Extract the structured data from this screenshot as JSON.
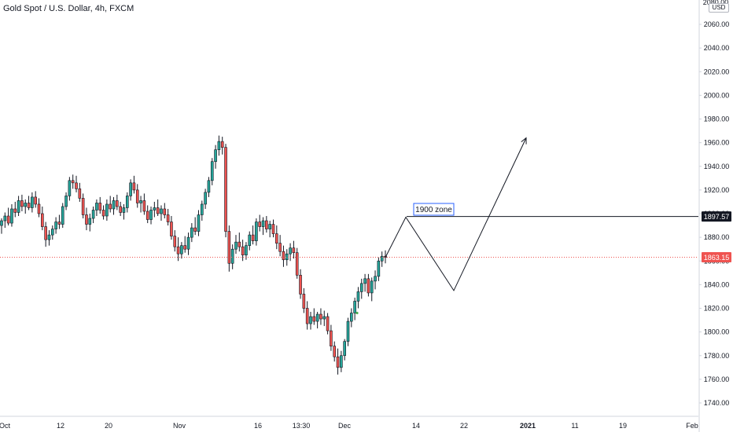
{
  "header": {
    "title": "Gold Spot / U.S. Dollar, 4h, FXCM",
    "currency": "USD",
    "top_clipped_label": "2080.00"
  },
  "colors": {
    "up": "#26a69a",
    "down": "#ef5350",
    "wick": "#131722",
    "drawing": "#131722",
    "current_price_line": "#ef5350",
    "current_price_badge": "#ef5350",
    "level_badge": "#131722",
    "annotation_border": "#2962ff",
    "axis_line": "#d1d4dc"
  },
  "chart_data": {
    "type": "candlestick",
    "title": "Gold Spot / U.S. Dollar, 4h, FXCM",
    "y_unit": "USD",
    "ylim": [
      1730,
      2080
    ],
    "y_ticks": [
      2060,
      2040,
      2020,
      2000,
      1980,
      1960,
      1940,
      1920,
      1900,
      1880,
      1860,
      1840,
      1820,
      1800,
      1780,
      1760,
      1740
    ],
    "y_tick_labels": [
      "2060.00",
      "2040.00",
      "2020.00",
      "2000.00",
      "1980.00",
      "1960.00",
      "1940.00",
      "1920.00",
      "1900.00",
      "1880.00",
      "1860.00",
      "1840.00",
      "1820.00",
      "1800.00",
      "1780.00",
      "1760.00",
      "1740.00"
    ],
    "x_tick_labels": [
      "Oct",
      "12",
      "20",
      "Nov",
      "16",
      "13:30",
      "Dec",
      "14",
      "22",
      "2021",
      "11",
      "19",
      "Feb"
    ],
    "grid": false,
    "current_price": 1863.15,
    "current_price_label": "1863.15",
    "horizontal_level": 1897.57,
    "horizontal_level_label": "1897.57",
    "annotation": "1900 zone",
    "projection_path": [
      1863,
      1897,
      1835,
      1964
    ],
    "price_path": [
      1895,
      1908,
      1915,
      1903,
      1888,
      1872,
      1888,
      1902,
      1920,
      1930,
      1912,
      1895,
      1883,
      1900,
      1905,
      1912,
      1902,
      1896,
      1908,
      1928,
      1918,
      1903,
      1910,
      1898,
      1892,
      1905,
      1903,
      1890,
      1875,
      1862,
      1868,
      1875,
      1892,
      1905,
      1920,
      1945,
      1962,
      1955,
      1870,
      1855,
      1868,
      1880,
      1895,
      1885,
      1880,
      1890,
      1898,
      1892,
      1880,
      1868,
      1860,
      1868,
      1870,
      1860,
      1848,
      1830,
      1813,
      1806,
      1812,
      1816,
      1808,
      1800,
      1790,
      1776,
      1768,
      1782,
      1795,
      1815,
      1830,
      1843,
      1848,
      1835,
      1846,
      1860,
      1866,
      1863
    ],
    "candles": [
      {
        "o": 1890,
        "h": 1896,
        "l": 1883,
        "c": 1894
      },
      {
        "o": 1894,
        "h": 1901,
        "l": 1888,
        "c": 1898
      },
      {
        "o": 1898,
        "h": 1905,
        "l": 1890,
        "c": 1892
      },
      {
        "o": 1892,
        "h": 1908,
        "l": 1889,
        "c": 1904
      },
      {
        "o": 1904,
        "h": 1910,
        "l": 1897,
        "c": 1901
      },
      {
        "o": 1901,
        "h": 1915,
        "l": 1898,
        "c": 1911
      },
      {
        "o": 1911,
        "h": 1916,
        "l": 1902,
        "c": 1906
      },
      {
        "o": 1906,
        "h": 1912,
        "l": 1900,
        "c": 1909
      },
      {
        "o": 1909,
        "h": 1915,
        "l": 1903,
        "c": 1905
      },
      {
        "o": 1905,
        "h": 1918,
        "l": 1901,
        "c": 1914
      },
      {
        "o": 1914,
        "h": 1919,
        "l": 1905,
        "c": 1908
      },
      {
        "o": 1908,
        "h": 1913,
        "l": 1897,
        "c": 1900
      },
      {
        "o": 1900,
        "h": 1906,
        "l": 1886,
        "c": 1889
      },
      {
        "o": 1889,
        "h": 1893,
        "l": 1872,
        "c": 1878
      },
      {
        "o": 1878,
        "h": 1886,
        "l": 1873,
        "c": 1882
      },
      {
        "o": 1882,
        "h": 1890,
        "l": 1878,
        "c": 1887
      },
      {
        "o": 1887,
        "h": 1897,
        "l": 1883,
        "c": 1893
      },
      {
        "o": 1893,
        "h": 1899,
        "l": 1887,
        "c": 1891
      },
      {
        "o": 1891,
        "h": 1909,
        "l": 1888,
        "c": 1906
      },
      {
        "o": 1906,
        "h": 1918,
        "l": 1903,
        "c": 1915
      },
      {
        "o": 1915,
        "h": 1931,
        "l": 1911,
        "c": 1928
      },
      {
        "o": 1928,
        "h": 1933,
        "l": 1921,
        "c": 1926
      },
      {
        "o": 1926,
        "h": 1932,
        "l": 1918,
        "c": 1921
      },
      {
        "o": 1921,
        "h": 1926,
        "l": 1910,
        "c": 1913
      },
      {
        "o": 1913,
        "h": 1917,
        "l": 1896,
        "c": 1899
      },
      {
        "o": 1899,
        "h": 1905,
        "l": 1886,
        "c": 1891
      },
      {
        "o": 1891,
        "h": 1900,
        "l": 1885,
        "c": 1896
      },
      {
        "o": 1896,
        "h": 1906,
        "l": 1892,
        "c": 1903
      },
      {
        "o": 1903,
        "h": 1912,
        "l": 1898,
        "c": 1909
      },
      {
        "o": 1909,
        "h": 1914,
        "l": 1900,
        "c": 1903
      },
      {
        "o": 1903,
        "h": 1907,
        "l": 1895,
        "c": 1898
      },
      {
        "o": 1898,
        "h": 1912,
        "l": 1894,
        "c": 1908
      },
      {
        "o": 1908,
        "h": 1915,
        "l": 1901,
        "c": 1904
      },
      {
        "o": 1904,
        "h": 1914,
        "l": 1899,
        "c": 1911
      },
      {
        "o": 1911,
        "h": 1916,
        "l": 1903,
        "c": 1906
      },
      {
        "o": 1906,
        "h": 1910,
        "l": 1898,
        "c": 1901
      },
      {
        "o": 1901,
        "h": 1908,
        "l": 1895,
        "c": 1905
      },
      {
        "o": 1905,
        "h": 1918,
        "l": 1901,
        "c": 1915
      },
      {
        "o": 1915,
        "h": 1929,
        "l": 1911,
        "c": 1926
      },
      {
        "o": 1926,
        "h": 1932,
        "l": 1917,
        "c": 1920
      },
      {
        "o": 1920,
        "h": 1925,
        "l": 1905,
        "c": 1909
      },
      {
        "o": 1909,
        "h": 1915,
        "l": 1901,
        "c": 1911
      },
      {
        "o": 1911,
        "h": 1917,
        "l": 1899,
        "c": 1902
      },
      {
        "o": 1902,
        "h": 1907,
        "l": 1892,
        "c": 1895
      },
      {
        "o": 1895,
        "h": 1906,
        "l": 1891,
        "c": 1903
      },
      {
        "o": 1903,
        "h": 1910,
        "l": 1897,
        "c": 1905
      },
      {
        "o": 1905,
        "h": 1912,
        "l": 1898,
        "c": 1900
      },
      {
        "o": 1900,
        "h": 1907,
        "l": 1894,
        "c": 1904
      },
      {
        "o": 1904,
        "h": 1909,
        "l": 1896,
        "c": 1899
      },
      {
        "o": 1899,
        "h": 1904,
        "l": 1890,
        "c": 1893
      },
      {
        "o": 1893,
        "h": 1898,
        "l": 1878,
        "c": 1881
      },
      {
        "o": 1881,
        "h": 1886,
        "l": 1868,
        "c": 1872
      },
      {
        "o": 1872,
        "h": 1880,
        "l": 1860,
        "c": 1866
      },
      {
        "o": 1866,
        "h": 1876,
        "l": 1862,
        "c": 1873
      },
      {
        "o": 1873,
        "h": 1881,
        "l": 1867,
        "c": 1870
      },
      {
        "o": 1870,
        "h": 1884,
        "l": 1865,
        "c": 1880
      },
      {
        "o": 1880,
        "h": 1892,
        "l": 1876,
        "c": 1888
      },
      {
        "o": 1888,
        "h": 1897,
        "l": 1882,
        "c": 1885
      },
      {
        "o": 1885,
        "h": 1903,
        "l": 1881,
        "c": 1899
      },
      {
        "o": 1899,
        "h": 1911,
        "l": 1894,
        "c": 1908
      },
      {
        "o": 1908,
        "h": 1921,
        "l": 1904,
        "c": 1918
      },
      {
        "o": 1918,
        "h": 1931,
        "l": 1914,
        "c": 1928
      },
      {
        "o": 1928,
        "h": 1947,
        "l": 1924,
        "c": 1944
      },
      {
        "o": 1944,
        "h": 1958,
        "l": 1938,
        "c": 1954
      },
      {
        "o": 1954,
        "h": 1966,
        "l": 1949,
        "c": 1961
      },
      {
        "o": 1961,
        "h": 1965,
        "l": 1950,
        "c": 1956
      },
      {
        "o": 1956,
        "h": 1959,
        "l": 1880,
        "c": 1885
      },
      {
        "o": 1885,
        "h": 1890,
        "l": 1851,
        "c": 1858
      },
      {
        "o": 1858,
        "h": 1874,
        "l": 1853,
        "c": 1870
      },
      {
        "o": 1870,
        "h": 1882,
        "l": 1866,
        "c": 1876
      },
      {
        "o": 1876,
        "h": 1884,
        "l": 1868,
        "c": 1872
      },
      {
        "o": 1872,
        "h": 1878,
        "l": 1860,
        "c": 1865
      },
      {
        "o": 1865,
        "h": 1876,
        "l": 1861,
        "c": 1873
      },
      {
        "o": 1873,
        "h": 1885,
        "l": 1869,
        "c": 1882
      },
      {
        "o": 1882,
        "h": 1890,
        "l": 1874,
        "c": 1877
      },
      {
        "o": 1877,
        "h": 1896,
        "l": 1873,
        "c": 1893
      },
      {
        "o": 1893,
        "h": 1899,
        "l": 1885,
        "c": 1889
      },
      {
        "o": 1889,
        "h": 1897,
        "l": 1882,
        "c": 1894
      },
      {
        "o": 1894,
        "h": 1898,
        "l": 1884,
        "c": 1887
      },
      {
        "o": 1887,
        "h": 1894,
        "l": 1880,
        "c": 1891
      },
      {
        "o": 1891,
        "h": 1895,
        "l": 1880,
        "c": 1883
      },
      {
        "o": 1883,
        "h": 1890,
        "l": 1870,
        "c": 1875
      },
      {
        "o": 1875,
        "h": 1882,
        "l": 1864,
        "c": 1868
      },
      {
        "o": 1868,
        "h": 1873,
        "l": 1855,
        "c": 1861
      },
      {
        "o": 1861,
        "h": 1870,
        "l": 1856,
        "c": 1866
      },
      {
        "o": 1866,
        "h": 1875,
        "l": 1860,
        "c": 1871
      },
      {
        "o": 1871,
        "h": 1877,
        "l": 1862,
        "c": 1867
      },
      {
        "o": 1867,
        "h": 1871,
        "l": 1845,
        "c": 1848
      },
      {
        "o": 1848,
        "h": 1853,
        "l": 1828,
        "c": 1832
      },
      {
        "o": 1832,
        "h": 1837,
        "l": 1816,
        "c": 1820
      },
      {
        "o": 1820,
        "h": 1826,
        "l": 1802,
        "c": 1807
      },
      {
        "o": 1807,
        "h": 1817,
        "l": 1802,
        "c": 1813
      },
      {
        "o": 1813,
        "h": 1820,
        "l": 1806,
        "c": 1809
      },
      {
        "o": 1809,
        "h": 1817,
        "l": 1803,
        "c": 1815
      },
      {
        "o": 1815,
        "h": 1820,
        "l": 1806,
        "c": 1811
      },
      {
        "o": 1811,
        "h": 1818,
        "l": 1805,
        "c": 1813
      },
      {
        "o": 1813,
        "h": 1816,
        "l": 1798,
        "c": 1801
      },
      {
        "o": 1801,
        "h": 1806,
        "l": 1784,
        "c": 1788
      },
      {
        "o": 1788,
        "h": 1792,
        "l": 1775,
        "c": 1779
      },
      {
        "o": 1779,
        "h": 1786,
        "l": 1764,
        "c": 1770
      },
      {
        "o": 1770,
        "h": 1784,
        "l": 1766,
        "c": 1780
      },
      {
        "o": 1780,
        "h": 1794,
        "l": 1776,
        "c": 1792
      },
      {
        "o": 1792,
        "h": 1812,
        "l": 1788,
        "c": 1809
      },
      {
        "o": 1809,
        "h": 1820,
        "l": 1804,
        "c": 1816
      },
      {
        "o": 1816,
        "h": 1829,
        "l": 1810,
        "c": 1826
      },
      {
        "o": 1826,
        "h": 1838,
        "l": 1820,
        "c": 1834
      },
      {
        "o": 1834,
        "h": 1845,
        "l": 1828,
        "c": 1841
      },
      {
        "o": 1841,
        "h": 1849,
        "l": 1834,
        "c": 1845
      },
      {
        "o": 1845,
        "h": 1849,
        "l": 1830,
        "c": 1833
      },
      {
        "o": 1833,
        "h": 1846,
        "l": 1826,
        "c": 1843
      },
      {
        "o": 1843,
        "h": 1852,
        "l": 1836,
        "c": 1847
      },
      {
        "o": 1847,
        "h": 1863,
        "l": 1843,
        "c": 1860
      },
      {
        "o": 1860,
        "h": 1868,
        "l": 1855,
        "c": 1864
      },
      {
        "o": 1864,
        "h": 1869,
        "l": 1858,
        "c": 1863
      }
    ]
  }
}
